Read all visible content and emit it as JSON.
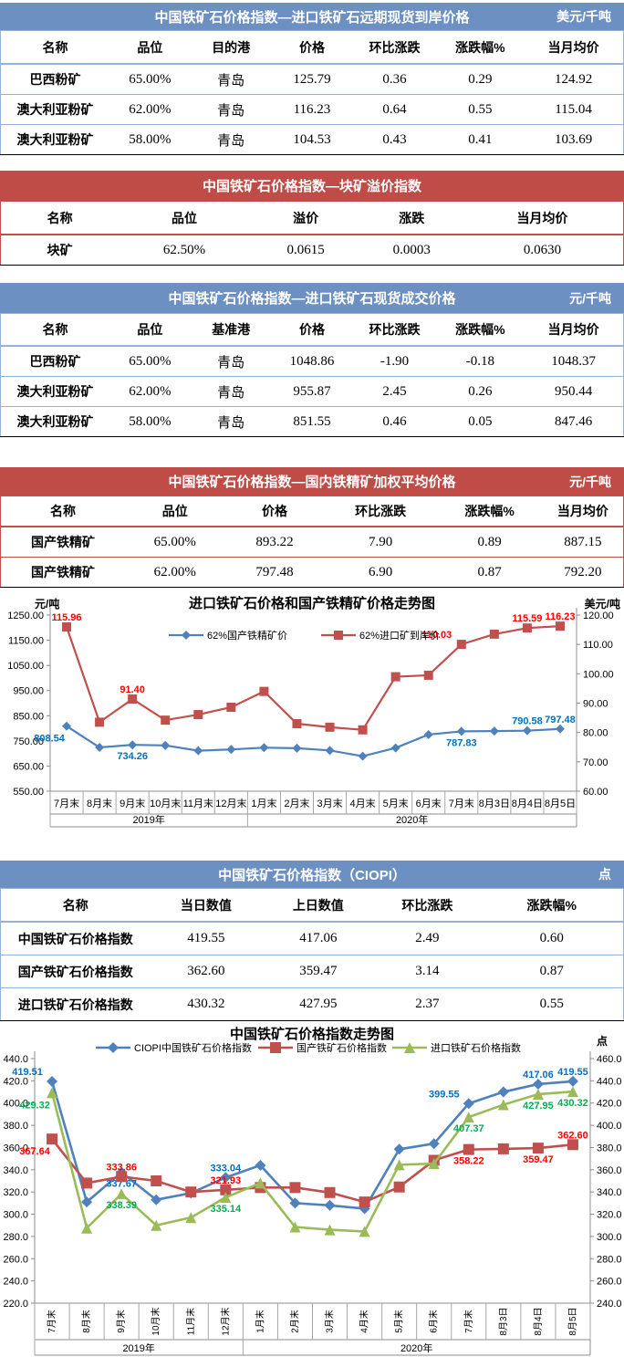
{
  "colors": {
    "accent_blue": "#6D90C3",
    "accent_red": "#BF4C47",
    "border_blue": "#95B3D7",
    "border_red": "#C0504D"
  },
  "tables": [
    {
      "theme": "blue",
      "title": "中国铁矿石价格指数—进口铁矿石远期现货到岸价格",
      "unit": "美元/千吨",
      "columns": [
        "名称",
        "品位",
        "目的港",
        "价格",
        "环比涨跌",
        "涨跌幅%",
        "当月均价"
      ],
      "rows": [
        [
          "巴西粉矿",
          "65.00%",
          "青岛",
          "125.79",
          "0.36",
          "0.29",
          "124.92"
        ],
        [
          "澳大利亚粉矿",
          "62.00%",
          "青岛",
          "116.23",
          "0.64",
          "0.55",
          "115.04"
        ],
        [
          "澳大利亚粉矿",
          "58.00%",
          "青岛",
          "104.53",
          "0.43",
          "0.41",
          "103.69"
        ]
      ]
    },
    {
      "theme": "red",
      "title": "中国铁矿石价格指数—块矿溢价指数",
      "unit": "",
      "columns": [
        "名称",
        "品位",
        "溢价",
        "涨跌",
        "当月均价"
      ],
      "rows": [
        [
          "块矿",
          "62.50%",
          "0.0615",
          "0.0003",
          "0.0630"
        ]
      ]
    },
    {
      "theme": "blue",
      "title": "中国铁矿石价格指数—进口铁矿石现货成交价格",
      "unit": "元/千吨",
      "columns": [
        "名称",
        "品位",
        "基准港",
        "价格",
        "环比涨跌",
        "涨跌幅%",
        "当月均价"
      ],
      "rows": [
        [
          "巴西粉矿",
          "65.00%",
          "青岛",
          "1048.86",
          "-1.90",
          "-0.18",
          "1048.37"
        ],
        [
          "澳大利亚粉矿",
          "62.00%",
          "青岛",
          "955.87",
          "2.45",
          "0.26",
          "950.44"
        ],
        [
          "澳大利亚粉矿",
          "58.00%",
          "青岛",
          "851.55",
          "0.46",
          "0.05",
          "847.46"
        ]
      ]
    },
    {
      "theme": "red",
      "title": "中国铁矿石价格指数—国内铁精矿加权平均价格",
      "unit": "元/千吨",
      "columns": [
        "名称",
        "品位",
        "价格",
        "环比涨跌",
        "涨跌幅%",
        "当月均价"
      ],
      "rows": [
        [
          "国产铁精矿",
          "65.00%",
          "893.22",
          "7.90",
          "0.89",
          "887.15"
        ],
        [
          "国产铁精矿",
          "62.00%",
          "797.48",
          "6.90",
          "0.87",
          "792.20"
        ]
      ]
    },
    {
      "theme": "blue",
      "title": "中国铁矿石价格指数（CIOPI）",
      "unit": "点",
      "columns": [
        "名称",
        "当日数值",
        "上日数值",
        "环比涨跌",
        "涨跌幅%"
      ],
      "rows": [
        [
          "中国铁矿石价格指数",
          "419.55",
          "417.06",
          "2.49",
          "0.60"
        ],
        [
          "国产铁矿石价格指数",
          "362.60",
          "359.47",
          "3.14",
          "0.87"
        ],
        [
          "进口铁矿石价格指数",
          "430.32",
          "427.95",
          "2.37",
          "0.55"
        ]
      ]
    }
  ],
  "chart_data": [
    {
      "type": "line",
      "title": "进口铁矿石价格和国产铁精矿价格走势图",
      "categories": [
        "7月末",
        "8月末",
        "9月末",
        "10月末",
        "11月末",
        "12月末",
        "1月末",
        "2月末",
        "3月末",
        "4月末",
        "5月末",
        "6月末",
        "7月末",
        "8月3日",
        "8月4日",
        "8月5日"
      ],
      "year_groups": [
        {
          "label": "2019年",
          "span": 6
        },
        {
          "label": "2020年",
          "span": 10
        }
      ],
      "left_axis": {
        "unit": "元/吨",
        "min": 550,
        "max": 1250,
        "ticks": [
          "1250.00",
          "1150.00",
          "1050.00",
          "950.00",
          "850.00",
          "750.00",
          "650.00",
          "550.00"
        ]
      },
      "right_axis": {
        "unit": "美元/吨",
        "min": 60,
        "max": 120,
        "ticks": [
          "120.00",
          "110.00",
          "100.00",
          "90.00",
          "80.00",
          "70.00",
          "60.00"
        ]
      },
      "series": [
        {
          "name": "62%国产铁精矿价",
          "axis": "left",
          "color": "#4F81BD",
          "marker": "diamond",
          "label_color": "#0070C0",
          "values": [
            808.54,
            724,
            734.26,
            732,
            711,
            716,
            723,
            721,
            712,
            689,
            722,
            775,
            787.83,
            789,
            790.58,
            797.48
          ],
          "labels": [
            {
              "i": 0,
              "v": "808.54",
              "pos": "below-left"
            },
            {
              "i": 2,
              "v": "734.26",
              "pos": "below"
            },
            {
              "i": 12,
              "v": "787.83",
              "pos": "below"
            },
            {
              "i": 14,
              "v": "790.58",
              "pos": "above"
            },
            {
              "i": 15,
              "v": "797.48",
              "pos": "above"
            }
          ]
        },
        {
          "name": "62%进口矿到岸价",
          "axis": "right",
          "color": "#C0504D",
          "marker": "square",
          "label_color": "#FF0000",
          "values": [
            115.96,
            83.5,
            91.4,
            84.2,
            86.1,
            88.6,
            94.0,
            83.0,
            81.8,
            80.9,
            99.0,
            99.5,
            110.03,
            113.5,
            115.59,
            116.23
          ],
          "labels": [
            {
              "i": 0,
              "v": "115.96",
              "pos": "above"
            },
            {
              "i": 2,
              "v": "91.40",
              "pos": "above"
            },
            {
              "i": 12,
              "v": "110.03",
              "pos": "above-left"
            },
            {
              "i": 14,
              "v": "115.59",
              "pos": "above"
            },
            {
              "i": 15,
              "v": "116.23",
              "pos": "above"
            }
          ]
        }
      ]
    },
    {
      "type": "line",
      "title": "中国铁矿石价格指数走势图",
      "unit": "点",
      "categories": [
        "7月末",
        "8月末",
        "9月末",
        "10月末",
        "11月末",
        "12月末",
        "1月末",
        "2月末",
        "3月末",
        "4月末",
        "5月末",
        "6月末",
        "7月末",
        "8月3日",
        "8月4日",
        "8月5日"
      ],
      "year_groups": [
        {
          "label": "2019年",
          "span": 6
        },
        {
          "label": "2020年",
          "span": 10
        }
      ],
      "left_axis": {
        "unit": "",
        "min": 220,
        "max": 440,
        "ticks": [
          "440.0",
          "420.0",
          "400.0",
          "380.0",
          "360.0",
          "340.0",
          "320.0",
          "300.0",
          "280.0",
          "260.0",
          "240.0",
          "220.0"
        ]
      },
      "right_axis": {
        "unit": "点",
        "min": 240,
        "max": 460,
        "ticks": [
          "460.0",
          "440.0",
          "420.0",
          "400.0",
          "380.0",
          "360.0",
          "340.0",
          "320.0",
          "300.0",
          "280.0",
          "260.0",
          "240.0"
        ]
      },
      "series": [
        {
          "name": "CIOPI中国铁矿石价格指数",
          "axis": "left",
          "color": "#4F81BD",
          "marker": "diamond",
          "label_color": "#0070C0",
          "values": [
            419.51,
            311,
            337.67,
            313,
            319,
            333.04,
            344,
            310,
            308,
            305,
            358.5,
            363.5,
            399.55,
            410,
            417.06,
            419.55
          ],
          "labels": [
            {
              "i": 0,
              "v": "419.51",
              "pos": "above-left"
            },
            {
              "i": 2,
              "v": "337.67",
              "pos": "below"
            },
            {
              "i": 5,
              "v": "333.04",
              "pos": "above"
            },
            {
              "i": 12,
              "v": "399.55",
              "pos": "above-left"
            },
            {
              "i": 14,
              "v": "417.06",
              "pos": "above"
            },
            {
              "i": 15,
              "v": "419.55",
              "pos": "above"
            }
          ]
        },
        {
          "name": "国产铁矿石价格指数",
          "axis": "left",
          "color": "#C0504D",
          "marker": "square",
          "label_color": "#FF0000",
          "values": [
            367.64,
            328,
            333.86,
            330,
            320,
            321.93,
            324,
            324,
            319.5,
            311,
            324.5,
            348.5,
            358.22,
            358.8,
            359.47,
            362.6
          ],
          "labels": [
            {
              "i": 0,
              "v": "367.64",
              "pos": "below-left"
            },
            {
              "i": 2,
              "v": "333.86",
              "pos": "above"
            },
            {
              "i": 5,
              "v": "321.93",
              "pos": "above"
            },
            {
              "i": 12,
              "v": "358.22",
              "pos": "below"
            },
            {
              "i": 14,
              "v": "359.47",
              "pos": "below"
            },
            {
              "i": 15,
              "v": "362.60",
              "pos": "above"
            }
          ]
        },
        {
          "name": "进口铁矿石价格指数",
          "axis": "right",
          "color": "#9BBB59",
          "marker": "triangle",
          "label_color": "#00B050",
          "values": [
            429.32,
            307.5,
            338.39,
            310,
            317,
            335.14,
            348,
            308.5,
            306,
            304.5,
            364.5,
            365.5,
            407.37,
            418.5,
            427.95,
            430.32
          ],
          "labels": [
            {
              "i": 0,
              "v": "429.32",
              "pos": "below-left"
            },
            {
              "i": 2,
              "v": "338.39",
              "pos": "below"
            },
            {
              "i": 5,
              "v": "335.14",
              "pos": "below"
            },
            {
              "i": 12,
              "v": "407.37",
              "pos": "below"
            },
            {
              "i": 14,
              "v": "427.95",
              "pos": "below"
            },
            {
              "i": 15,
              "v": "430.32",
              "pos": "below"
            }
          ]
        }
      ]
    }
  ]
}
